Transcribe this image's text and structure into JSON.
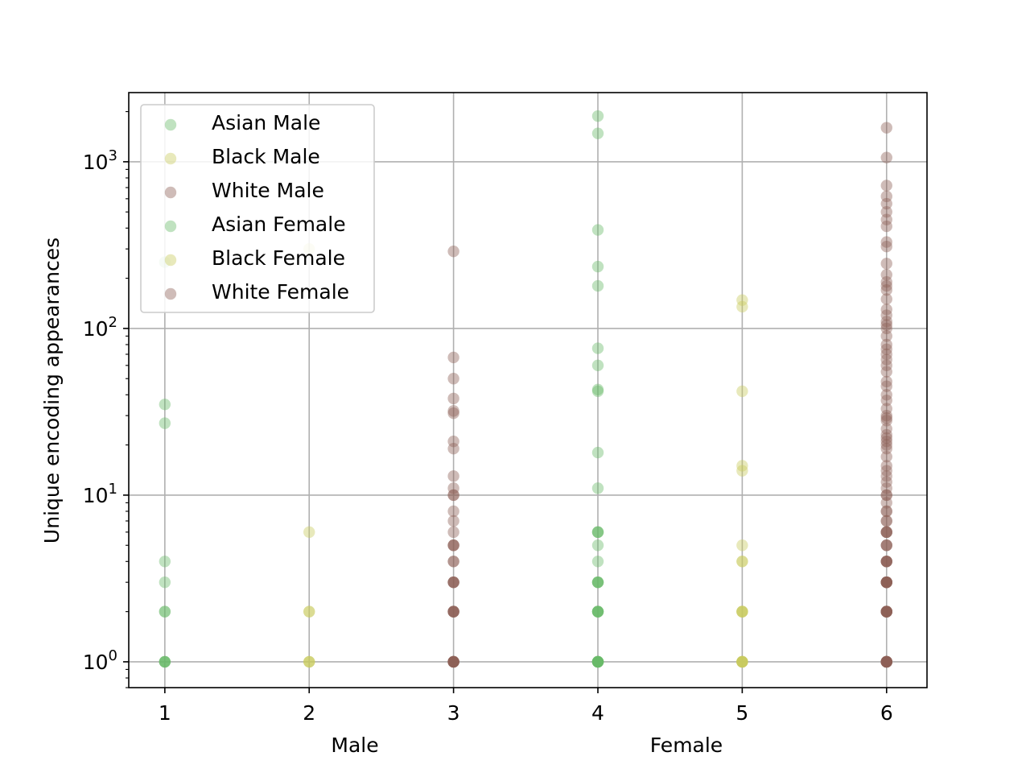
{
  "chart_data": {
    "type": "scatter",
    "title": "",
    "ylabel": "Unique encoding appearances",
    "group_labels": [
      "Male",
      "Female"
    ],
    "x_ticks": [
      1,
      2,
      3,
      4,
      5,
      6
    ],
    "xlim": [
      0.75,
      6.28
    ],
    "ylim": [
      0.7,
      2600
    ],
    "yscale": "log",
    "y_ticks": [
      {
        "value": 1,
        "base": "10",
        "exp": "0"
      },
      {
        "value": 10,
        "base": "10",
        "exp": "1"
      },
      {
        "value": 100,
        "base": "10",
        "exp": "2"
      },
      {
        "value": 1000,
        "base": "10",
        "exp": "3"
      }
    ],
    "grid": true,
    "legend_position": "upper-left",
    "series": [
      {
        "name": "Asian Male",
        "color": "#69b96a",
        "x": 1,
        "y": [
          1,
          1,
          1,
          1,
          2,
          2,
          3,
          4,
          27,
          35,
          250
        ]
      },
      {
        "name": "Black Male",
        "color": "#c9cb5e",
        "x": 2,
        "y": [
          1,
          1,
          1,
          2,
          2,
          6,
          300
        ]
      },
      {
        "name": "White Male",
        "color": "#8c5f55",
        "x": 3,
        "y": [
          1,
          1,
          1,
          1,
          1,
          1,
          1,
          1,
          2,
          2,
          2,
          2,
          2,
          3,
          3,
          3,
          3,
          4,
          4,
          5,
          5,
          5,
          6,
          7,
          8,
          10,
          10,
          11,
          13,
          19,
          21,
          31,
          32,
          38,
          50,
          67,
          290
        ]
      },
      {
        "name": "Asian Female",
        "color": "#69b96a",
        "x": 4,
        "y": [
          1,
          1,
          1,
          1,
          1,
          1,
          1,
          1,
          1,
          1,
          2,
          2,
          2,
          2,
          2,
          3,
          3,
          3,
          3,
          4,
          5,
          6,
          6,
          6,
          11,
          18,
          42,
          43,
          60,
          76,
          180,
          235,
          390,
          1480,
          1880
        ]
      },
      {
        "name": "Black Female",
        "color": "#c9cb5e",
        "x": 5,
        "y": [
          1,
          1,
          1,
          1,
          1,
          1,
          1,
          2,
          2,
          2,
          2,
          4,
          4,
          5,
          14,
          15,
          42,
          135,
          148
        ]
      },
      {
        "name": "White Female",
        "color": "#8c5f55",
        "x": 6,
        "y": [
          1,
          1,
          1,
          1,
          1,
          1,
          1,
          1,
          1,
          1,
          1,
          1,
          2,
          2,
          2,
          2,
          2,
          2,
          2,
          2,
          3,
          3,
          3,
          3,
          3,
          3,
          3,
          3,
          4,
          4,
          4,
          4,
          4,
          5,
          5,
          5,
          6,
          6,
          6,
          6,
          7,
          7,
          8,
          8,
          9,
          10,
          10,
          11,
          12,
          13,
          14,
          15,
          17,
          19,
          20,
          21,
          22,
          23,
          25,
          28,
          29,
          30,
          33,
          37,
          40,
          45,
          48,
          55,
          60,
          65,
          70,
          75,
          80,
          90,
          100,
          105,
          110,
          120,
          130,
          150,
          170,
          180,
          190,
          210,
          245,
          310,
          330,
          410,
          450,
          500,
          560,
          620,
          720,
          1060,
          1600
        ]
      }
    ]
  }
}
